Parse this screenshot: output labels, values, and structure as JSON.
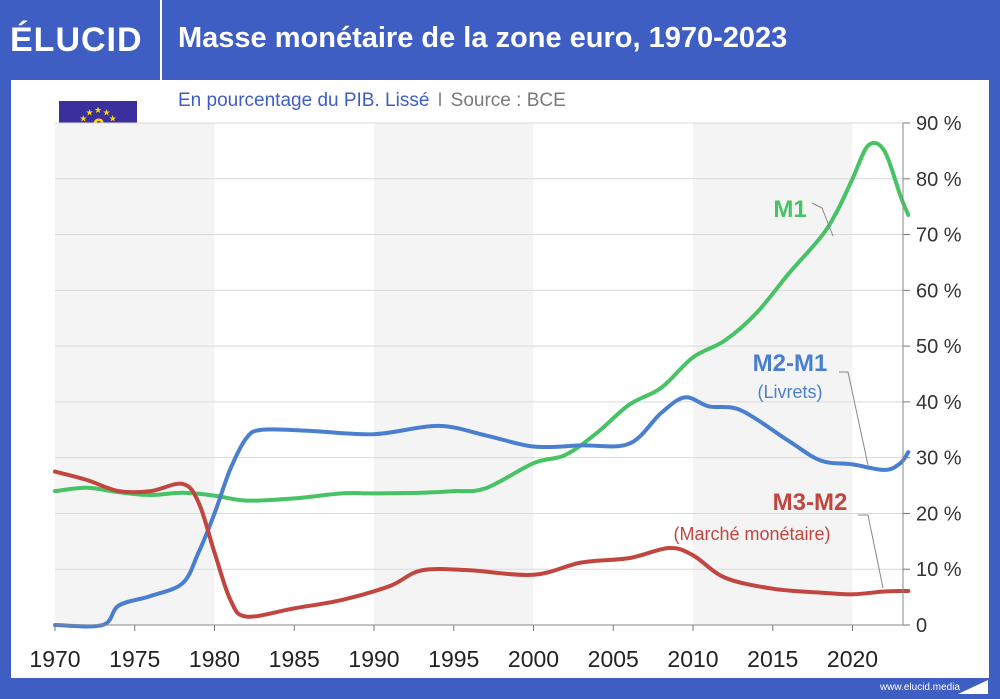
{
  "header": {
    "logo": "ÉLUCID",
    "title": "Masse monétaire de la zone euro, 1970-2023"
  },
  "subtitle": {
    "main": "En pourcentage du PIB. Lissé",
    "separator": "I",
    "source": "Source : BCE"
  },
  "flag": {
    "icon": "eu-flag-euro-icon",
    "background": "#3a2f9c",
    "stars": "#ffd700"
  },
  "footer": {
    "url": "www.elucid.media"
  },
  "colors": {
    "brand_blue": "#3f5ec4",
    "m1": "#47c265",
    "m2m1": "#4a7fcf",
    "m3m2": "#c0463f"
  },
  "chart_data": {
    "type": "line",
    "title": "Masse monétaire de la zone euro, 1970-2023",
    "subtitle": "En pourcentage du PIB. Lissé",
    "xlim": [
      1970,
      2023.5
    ],
    "ylim": [
      0,
      90
    ],
    "x_ticks": [
      "1970",
      "1975",
      "1980",
      "1985",
      "1990",
      "1995",
      "2000",
      "2005",
      "2010",
      "2015",
      "2020"
    ],
    "y_ticks": [
      "0",
      "10 %",
      "20 %",
      "30 %",
      "40 %",
      "50 %",
      "60 %",
      "70 %",
      "80 %",
      "90 %"
    ],
    "y_axis_side": "right",
    "grid": true,
    "shaded_bands": [
      [
        1970,
        1980
      ],
      [
        1990,
        2000
      ],
      [
        2010,
        2020
      ]
    ],
    "series": [
      {
        "name": "M1",
        "color": "#47c265",
        "points": [
          [
            1970,
            24
          ],
          [
            1972,
            24.6
          ],
          [
            1974,
            23.8
          ],
          [
            1976,
            23.3
          ],
          [
            1978,
            23.7
          ],
          [
            1980,
            23.2
          ],
          [
            1982,
            22.3
          ],
          [
            1985,
            22.7
          ],
          [
            1988,
            23.6
          ],
          [
            1990,
            23.6
          ],
          [
            1993,
            23.7
          ],
          [
            1995,
            24.0
          ],
          [
            1997,
            24.5
          ],
          [
            2000,
            29.0
          ],
          [
            2002,
            30.5
          ],
          [
            2004,
            34.5
          ],
          [
            2006,
            39.5
          ],
          [
            2008,
            42.5
          ],
          [
            2010,
            48.0
          ],
          [
            2012,
            51.0
          ],
          [
            2014,
            56.0
          ],
          [
            2016,
            63.0
          ],
          [
            2018,
            69.5
          ],
          [
            2019,
            74.0
          ],
          [
            2020,
            80.0
          ],
          [
            2021,
            86.0
          ],
          [
            2022,
            85.0
          ],
          [
            2023,
            77.0
          ],
          [
            2023.5,
            73.5
          ]
        ]
      },
      {
        "name": "M2-M1",
        "color": "#4a7fcf",
        "points": [
          [
            1970,
            0
          ],
          [
            1973,
            0
          ],
          [
            1974,
            3.5
          ],
          [
            1976,
            5.2
          ],
          [
            1978,
            7.5
          ],
          [
            1979,
            13.0
          ],
          [
            1980,
            20.0
          ],
          [
            1981,
            28.0
          ],
          [
            1982,
            33.5
          ],
          [
            1983,
            35.0
          ],
          [
            1986,
            34.8
          ],
          [
            1990,
            34.2
          ],
          [
            1994,
            35.7
          ],
          [
            1997,
            34.0
          ],
          [
            2000,
            32.0
          ],
          [
            2003,
            32.2
          ],
          [
            2006,
            32.5
          ],
          [
            2008,
            38.0
          ],
          [
            2009.5,
            40.8
          ],
          [
            2011,
            39.2
          ],
          [
            2013,
            38.5
          ],
          [
            2016,
            33.0
          ],
          [
            2018,
            29.5
          ],
          [
            2020,
            28.8
          ],
          [
            2022,
            27.8
          ],
          [
            2023,
            29.0
          ],
          [
            2023.5,
            31.0
          ]
        ]
      },
      {
        "name": "M3-M2",
        "color": "#c0463f",
        "points": [
          [
            1970,
            27.5
          ],
          [
            1972,
            26.0
          ],
          [
            1974,
            24.0
          ],
          [
            1976,
            24.0
          ],
          [
            1978,
            25.3
          ],
          [
            1979,
            22.0
          ],
          [
            1980,
            13.0
          ],
          [
            1981,
            4.5
          ],
          [
            1982,
            1.5
          ],
          [
            1985,
            3.0
          ],
          [
            1988,
            4.5
          ],
          [
            1991,
            7.0
          ],
          [
            1993,
            9.8
          ],
          [
            1996,
            9.8
          ],
          [
            2000,
            9.0
          ],
          [
            2003,
            11.2
          ],
          [
            2006,
            12.0
          ],
          [
            2008.5,
            13.8
          ],
          [
            2010,
            12.5
          ],
          [
            2012,
            8.5
          ],
          [
            2015,
            6.5
          ],
          [
            2018,
            5.8
          ],
          [
            2020,
            5.5
          ],
          [
            2022,
            6.0
          ],
          [
            2023.5,
            6.1
          ]
        ]
      }
    ],
    "annotations": [
      {
        "series": "M1",
        "label": "M1",
        "note": ""
      },
      {
        "series": "M2-M1",
        "label": "M2-M1",
        "note": "(Livrets)"
      },
      {
        "series": "M3-M2",
        "label": "M3-M2",
        "note": "(Marché monétaire)"
      }
    ]
  }
}
